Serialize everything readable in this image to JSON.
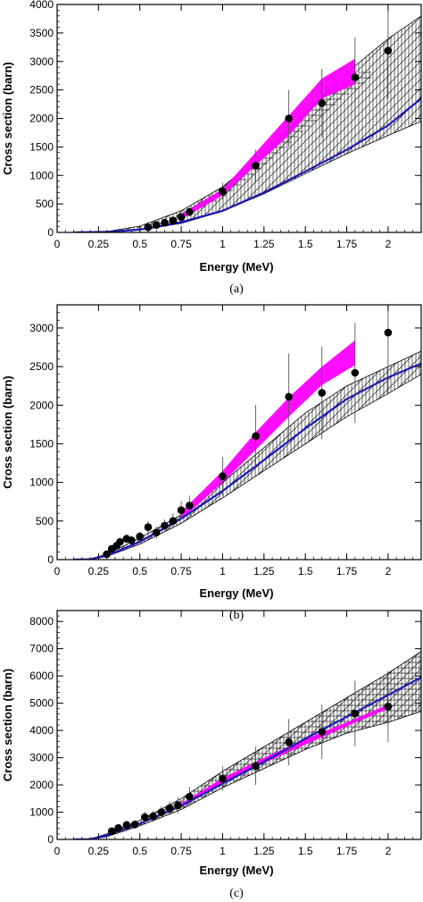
{
  "chart_data": [
    {
      "type": "scatter",
      "panel": "a",
      "caption": "(a)",
      "xlabel": "Energy (MeV)",
      "ylabel": "Cross section (barn)",
      "xlim": [
        0,
        2.2
      ],
      "ylim": [
        0,
        4000
      ],
      "xticks": [
        0,
        0.25,
        0.5,
        0.75,
        1,
        1.25,
        1.5,
        1.75,
        2
      ],
      "xtick_labels": [
        "0",
        "0.25",
        "0.5",
        "0.75",
        "1",
        "1.25",
        "1.5",
        "1.75",
        "2"
      ],
      "yticks": [
        0,
        500,
        1000,
        1500,
        2000,
        2500,
        3000,
        3500,
        4000
      ],
      "ytick_labels": [
        "0",
        "500",
        "1000",
        "1500",
        "2000",
        "2500",
        "3000",
        "3500",
        "4000"
      ],
      "points": [
        {
          "x": 0.55,
          "y": 90,
          "err": 20
        },
        {
          "x": 0.6,
          "y": 130,
          "err": 30
        },
        {
          "x": 0.65,
          "y": 170,
          "err": 40
        },
        {
          "x": 0.7,
          "y": 210,
          "err": 50
        },
        {
          "x": 0.75,
          "y": 270,
          "err": 60
        },
        {
          "x": 0.8,
          "y": 360,
          "err": 80
        },
        {
          "x": 1.0,
          "y": 720,
          "err": 150
        },
        {
          "x": 1.2,
          "y": 1170,
          "err": 280
        },
        {
          "x": 1.4,
          "y": 2000,
          "err": 500
        },
        {
          "x": 1.6,
          "y": 2270,
          "err": 600
        },
        {
          "x": 1.8,
          "y": 2720,
          "err": 700
        },
        {
          "x": 2.0,
          "y": 3190,
          "err": 850
        }
      ],
      "magenta_band": {
        "x": [
          0.75,
          1.0,
          1.4,
          1.6,
          1.8
        ],
        "lower": [
          230,
          650,
          1700,
          2350,
          2600
        ],
        "upper": [
          330,
          760,
          2050,
          2700,
          3050
        ]
      },
      "hatched_band": {
        "x": [
          0.1,
          0.3,
          0.5,
          0.75,
          1.0,
          1.25,
          1.5,
          1.75,
          2.0,
          2.2
        ],
        "lower": [
          0,
          5,
          40,
          160,
          370,
          680,
          1030,
          1380,
          1700,
          1950
        ],
        "upper": [
          0,
          15,
          110,
          380,
          800,
          1400,
          2100,
          2800,
          3400,
          3800
        ]
      },
      "crosshatch_band": {
        "x": [
          0.75,
          1.0,
          1.25,
          1.5,
          1.75,
          1.9
        ],
        "lower": [
          250,
          600,
          1150,
          1800,
          2400,
          2700
        ],
        "upper": [
          320,
          800,
          1400,
          2100,
          2700,
          2900
        ]
      },
      "blue_line": {
        "x": [
          0.1,
          0.3,
          0.5,
          0.6,
          0.75,
          1.0,
          1.25,
          1.5,
          1.75,
          2.0,
          2.2
        ],
        "y": [
          0,
          10,
          50,
          95,
          180,
          380,
          700,
          1070,
          1450,
          1880,
          2350
        ]
      }
    },
    {
      "type": "scatter",
      "panel": "b",
      "caption": "(b)",
      "xlabel": "Energy (MeV)",
      "ylabel": "Cross section (barn)",
      "xlim": [
        0,
        2.2
      ],
      "ylim": [
        0,
        3300
      ],
      "xticks": [
        0,
        0.25,
        0.5,
        0.75,
        1,
        1.25,
        1.5,
        1.75,
        2
      ],
      "xtick_labels": [
        "0",
        "0.25",
        "0.5",
        "0.75",
        "1",
        "1.25",
        "1.5",
        "1.75",
        "2"
      ],
      "yticks": [
        0,
        500,
        1000,
        1500,
        2000,
        2500,
        3000
      ],
      "ytick_labels": [
        "0",
        "500",
        "1000",
        "1500",
        "2000",
        "2500",
        "3000"
      ],
      "points": [
        {
          "x": 0.3,
          "y": 70,
          "err": 30
        },
        {
          "x": 0.33,
          "y": 140,
          "err": 40
        },
        {
          "x": 0.36,
          "y": 180,
          "err": 50
        },
        {
          "x": 0.38,
          "y": 230,
          "err": 50
        },
        {
          "x": 0.42,
          "y": 270,
          "err": 60
        },
        {
          "x": 0.45,
          "y": 250,
          "err": 60
        },
        {
          "x": 0.5,
          "y": 300,
          "err": 60
        },
        {
          "x": 0.55,
          "y": 420,
          "err": 80
        },
        {
          "x": 0.6,
          "y": 350,
          "err": 80
        },
        {
          "x": 0.65,
          "y": 440,
          "err": 80
        },
        {
          "x": 0.7,
          "y": 500,
          "err": 100
        },
        {
          "x": 0.75,
          "y": 640,
          "err": 120
        },
        {
          "x": 0.8,
          "y": 700,
          "err": 130
        },
        {
          "x": 1.0,
          "y": 1080,
          "err": 250
        },
        {
          "x": 1.2,
          "y": 1600,
          "err": 400
        },
        {
          "x": 1.4,
          "y": 2110,
          "err": 560
        },
        {
          "x": 1.6,
          "y": 2160,
          "err": 600
        },
        {
          "x": 1.8,
          "y": 2420,
          "err": 650
        },
        {
          "x": 2.0,
          "y": 2940,
          "err": 800
        }
      ],
      "magenta_band": {
        "x": [
          0.75,
          1.0,
          1.2,
          1.4,
          1.6,
          1.8
        ],
        "lower": [
          520,
          1000,
          1420,
          1850,
          2260,
          2520
        ],
        "upper": [
          620,
          1150,
          1650,
          2100,
          2500,
          2840
        ]
      },
      "hatched_band": {
        "x": [
          0.1,
          0.2,
          0.3,
          0.5,
          0.75,
          1.0,
          1.25,
          1.5,
          1.75,
          2.0,
          2.2
        ],
        "lower": [
          0,
          5,
          40,
          200,
          470,
          800,
          1150,
          1500,
          1850,
          2150,
          2400
        ],
        "upper": [
          0,
          10,
          70,
          280,
          580,
          1000,
          1450,
          1900,
          2250,
          2500,
          2700
        ]
      },
      "blue_line": {
        "x": [
          0.1,
          0.2,
          0.3,
          0.5,
          0.75,
          1.0,
          1.25,
          1.5,
          1.75,
          2.0,
          2.2
        ],
        "y": [
          0,
          5,
          50,
          230,
          530,
          890,
          1290,
          1700,
          2080,
          2360,
          2540
        ]
      }
    },
    {
      "type": "scatter",
      "panel": "c",
      "caption": "(c)",
      "xlabel": "Energy (MeV)",
      "ylabel": "Cross section (barn)",
      "xlim": [
        0,
        2.2
      ],
      "ylim": [
        0,
        8400
      ],
      "xticks": [
        0,
        0.25,
        0.5,
        0.75,
        1,
        1.25,
        1.5,
        1.75,
        2
      ],
      "xtick_labels": [
        "0",
        "0.25",
        "0.5",
        "0.75",
        "1",
        "1.25",
        "1.5",
        "1.75",
        "2"
      ],
      "yticks": [
        0,
        1000,
        2000,
        3000,
        4000,
        5000,
        6000,
        7000,
        8000
      ],
      "ytick_labels": [
        "0",
        "1000",
        "2000",
        "3000",
        "4000",
        "5000",
        "6000",
        "7000",
        "8000"
      ],
      "points": [
        {
          "x": 0.33,
          "y": 300,
          "err": 100
        },
        {
          "x": 0.37,
          "y": 420,
          "err": 120
        },
        {
          "x": 0.42,
          "y": 530,
          "err": 150
        },
        {
          "x": 0.47,
          "y": 550,
          "err": 150
        },
        {
          "x": 0.53,
          "y": 820,
          "err": 200
        },
        {
          "x": 0.58,
          "y": 850,
          "err": 200
        },
        {
          "x": 0.63,
          "y": 1000,
          "err": 220
        },
        {
          "x": 0.68,
          "y": 1150,
          "err": 250
        },
        {
          "x": 0.73,
          "y": 1250,
          "err": 300
        },
        {
          "x": 0.8,
          "y": 1570,
          "err": 350
        },
        {
          "x": 1.0,
          "y": 2230,
          "err": 450
        },
        {
          "x": 1.2,
          "y": 2700,
          "err": 700
        },
        {
          "x": 1.4,
          "y": 3570,
          "err": 850
        },
        {
          "x": 1.6,
          "y": 3950,
          "err": 1000
        },
        {
          "x": 1.8,
          "y": 4620,
          "err": 1200
        },
        {
          "x": 2.0,
          "y": 4880,
          "err": 1300
        }
      ],
      "magenta_band": {
        "x": [
          0.75,
          1.0,
          1.25,
          1.5,
          1.75,
          2.0
        ],
        "lower": [
          1180,
          2100,
          2800,
          3480,
          4150,
          4800
        ],
        "upper": [
          1320,
          2250,
          3000,
          3680,
          4300,
          4950
        ]
      },
      "hatched_band": {
        "x": [
          0.1,
          0.2,
          0.3,
          0.5,
          0.75,
          1.0,
          1.25,
          1.5,
          1.75,
          2.0,
          2.2
        ],
        "lower": [
          0,
          5,
          100,
          500,
          1100,
          1900,
          2600,
          3300,
          3900,
          4300,
          4700
        ],
        "upper": [
          0,
          15,
          200,
          700,
          1500,
          2500,
          3400,
          4300,
          5200,
          6100,
          6900
        ]
      },
      "blue_line": {
        "x": [
          0.1,
          0.2,
          0.3,
          0.5,
          0.75,
          1.0,
          1.25,
          1.5,
          1.75,
          2.0,
          2.2
        ],
        "y": [
          0,
          10,
          150,
          580,
          1230,
          2050,
          2850,
          3700,
          4500,
          5300,
          5950
        ]
      }
    }
  ],
  "colors": {
    "blue_line": "#1a1ab8",
    "magenta_band": "#ff00ff",
    "points": "#000000",
    "hatch": "#000000"
  }
}
